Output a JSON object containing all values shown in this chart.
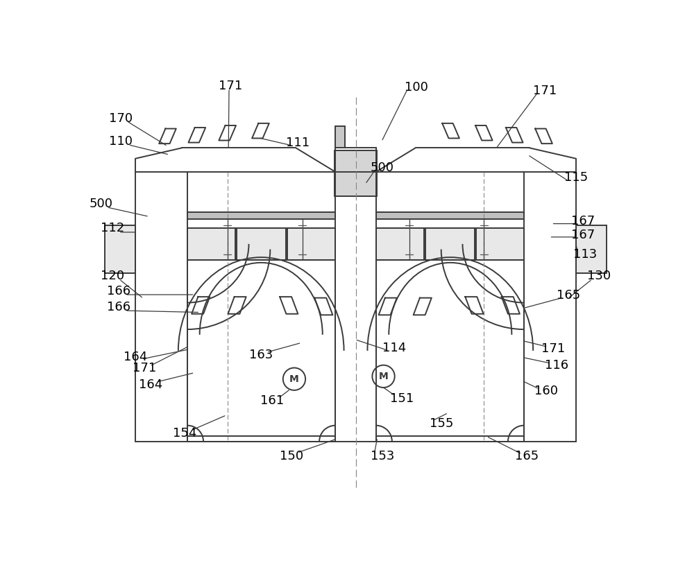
{
  "bg": "#ffffff",
  "lc": "#3a3a3a",
  "lw": 1.4,
  "lw_thin": 0.9,
  "fs": 13
}
